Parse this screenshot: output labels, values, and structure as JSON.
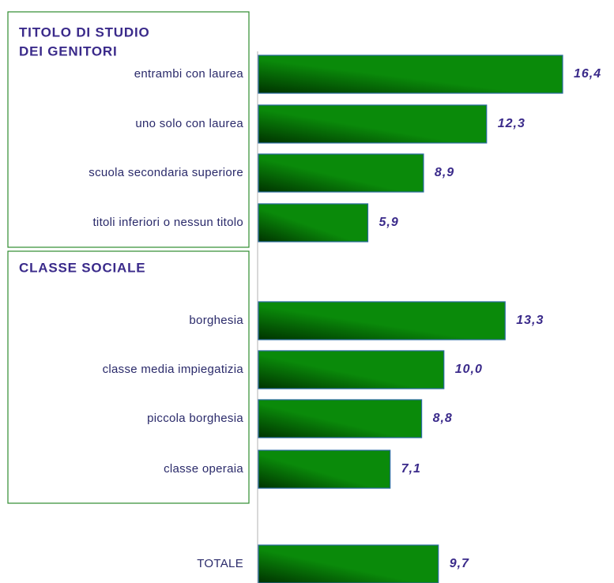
{
  "chart_data": {
    "type": "barh",
    "groups": [
      {
        "title": [
          "TITOLO DI STUDIO",
          "DEI GENITORI"
        ]
      },
      {
        "title": [
          "CLASSE SOCIALE"
        ]
      }
    ],
    "categories": [
      "entrambi con laurea",
      "uno solo con laurea",
      "scuola secondaria superiore",
      "titoli inferiori o nessun titolo",
      "borghesia",
      "classe media impiegatizia",
      "piccola borghesia",
      "classe operaia",
      "TOTALE"
    ],
    "values": [
      16.4,
      12.3,
      8.9,
      5.9,
      13.3,
      10.0,
      8.8,
      7.1,
      9.7
    ],
    "value_labels": [
      "16,4",
      "12,3",
      "8,9",
      "5,9",
      "13,3",
      "10,0",
      "8,8",
      "7,1",
      "9,7"
    ],
    "color": "#0a8a0a",
    "xlim": [
      0,
      18.7
    ]
  }
}
